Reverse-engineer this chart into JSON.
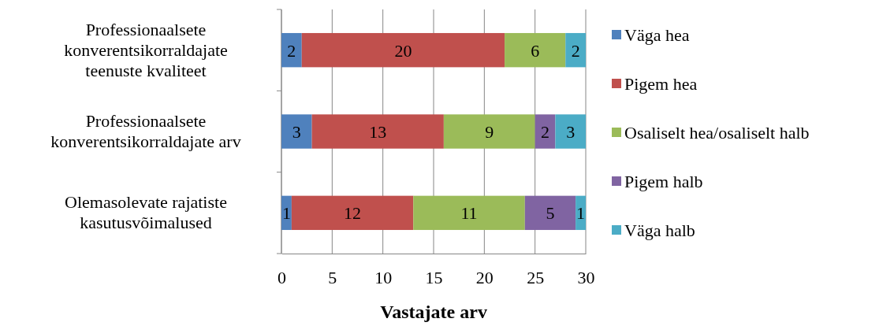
{
  "chart_data": {
    "type": "bar",
    "orientation": "horizontal",
    "stacked": true,
    "xlabel": "Vastajate arv",
    "categories": [
      "Professionaalsete konverentsikorraldajate teenuste kvaliteet",
      "Professionaalsete konverentsikorraldajate arv",
      "Olemasolevate rajatiste kasutusvõimalused"
    ],
    "series": [
      {
        "name": "Väga hea",
        "color": "#4f81bd",
        "values": [
          2,
          3,
          1
        ]
      },
      {
        "name": "Pigem hea",
        "color": "#c0504d",
        "values": [
          20,
          13,
          12
        ]
      },
      {
        "name": "Osaliselt hea/osaliselt halb",
        "color": "#9bbb59",
        "values": [
          6,
          9,
          11
        ]
      },
      {
        "name": "Pigem halb",
        "color": "#8064a2",
        "values": [
          null,
          2,
          5
        ]
      },
      {
        "name": "Väga halb",
        "color": "#4bacc6",
        "values": [
          2,
          3,
          1
        ]
      }
    ],
    "xlim": [
      0,
      30
    ],
    "xticks": [
      0,
      5,
      10,
      15,
      20,
      25,
      30
    ],
    "grid": "x",
    "legend": "right",
    "data_labels": true
  }
}
